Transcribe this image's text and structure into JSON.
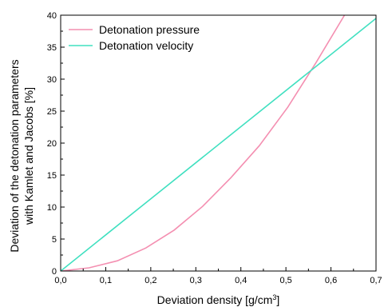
{
  "chart_data": {
    "type": "line",
    "xlabel": "Deviation density [g/cm",
    "xlabel_sup": "3",
    "xlabel_end": "]",
    "ylabel_line1": "Deviation of the detonation parameters",
    "ylabel_line2": "with Kamlet and Jacobs [%]",
    "xlim": [
      0,
      0.7
    ],
    "ylim": [
      0,
      40
    ],
    "x_ticks": [
      "0,0",
      "0,1",
      "0,2",
      "0,3",
      "0,4",
      "0,5",
      "0,6",
      "0,7"
    ],
    "y_ticks": [
      "0",
      "5",
      "10",
      "15",
      "20",
      "25",
      "30",
      "35",
      "40"
    ],
    "legend_position": "top-left",
    "grid": false,
    "series": [
      {
        "name": "Detonation pressure",
        "color": "#f48fb1",
        "x": [
          0.0,
          0.063,
          0.126,
          0.189,
          0.252,
          0.315,
          0.378,
          0.441,
          0.504,
          0.567,
          0.63
        ],
        "y": [
          0.0,
          0.5,
          1.6,
          3.6,
          6.4,
          10.1,
          14.6,
          19.6,
          25.6,
          32.6,
          40.0
        ]
      },
      {
        "name": "Detonation velocity",
        "color": "#40e0c0",
        "x": [
          0.0,
          0.7
        ],
        "y": [
          0.0,
          39.5
        ]
      }
    ]
  }
}
